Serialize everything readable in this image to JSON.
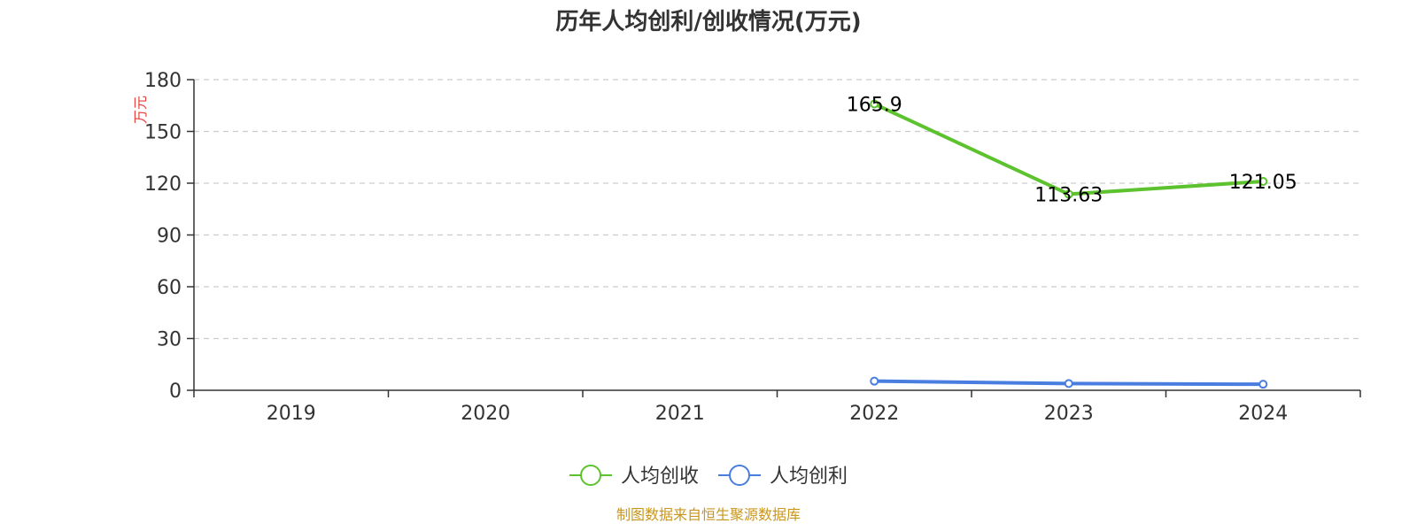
{
  "chart_data": {
    "type": "line",
    "title": "历年人均创利/创收情况(万元)",
    "ylabel": "万元",
    "xlabel": "",
    "categories": [
      "2019",
      "2020",
      "2021",
      "2022",
      "2023",
      "2024"
    ],
    "ylim": [
      0,
      180
    ],
    "yticks": [
      0,
      30,
      60,
      90,
      120,
      150,
      180
    ],
    "grid": true,
    "legend_position": "bottom",
    "series": [
      {
        "name": "人均创收",
        "color": "#5cc22d",
        "values": [
          null,
          null,
          null,
          165.9,
          113.63,
          121.05
        ],
        "labels": [
          "",
          "",
          "",
          "165.9",
          "113.63",
          "121.05"
        ]
      },
      {
        "name": "人均创利",
        "color": "#4a7de0",
        "values": [
          null,
          null,
          null,
          5.3,
          3.9,
          3.5
        ],
        "labels": [
          "",
          "",
          "",
          "",
          "",
          ""
        ]
      }
    ],
    "unit_color": "#e8413c"
  },
  "footer": {
    "source": "制图数据来自恒生聚源数据库"
  }
}
